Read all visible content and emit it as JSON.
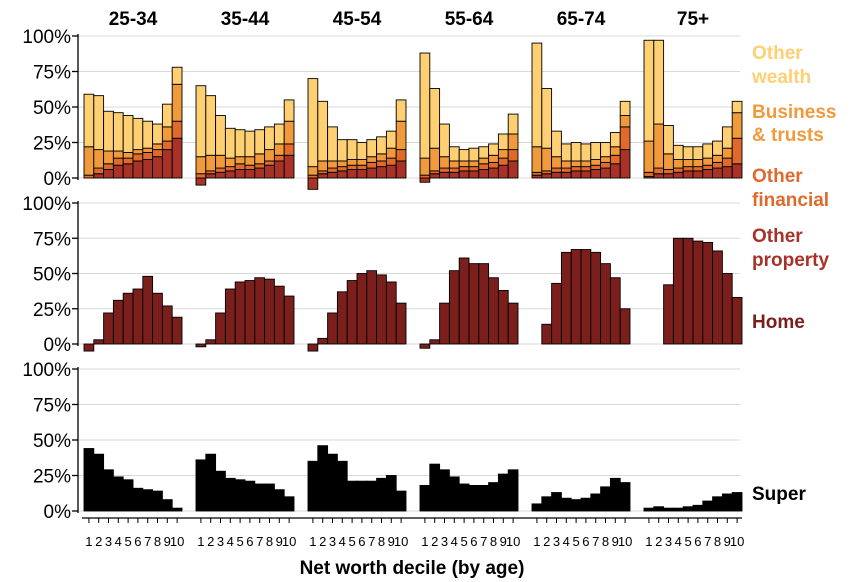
{
  "chart_data": {
    "type": "bar",
    "stacked": true,
    "x_axis_label": "Net worth decile (by age)",
    "y_ticks": [
      "100%",
      "75%",
      "50%",
      "25%",
      "0%"
    ],
    "y_range": [
      0,
      100
    ],
    "deciles": [
      "1",
      "2",
      "3",
      "4",
      "5",
      "6",
      "7",
      "8",
      "9",
      "10"
    ],
    "age_groups": [
      "25-34",
      "35-44",
      "45-54",
      "55-64",
      "65-74",
      "75+"
    ],
    "colors": {
      "Home": "#7b1f1c",
      "Other property": "#a83228",
      "Other financial": "#e06a2b",
      "Business & trusts": "#f09a3c",
      "Other wealth": "#fecf73",
      "Super": "#000000"
    },
    "rows": [
      {
        "row": "top",
        "legend": [
          {
            "lines": [
              "Other",
              "wealth"
            ],
            "color": "#fecf73"
          },
          {
            "lines": [
              "Business",
              "& trusts"
            ],
            "color": "#f09a3c"
          },
          {
            "lines": [
              "Other",
              "financial"
            ],
            "color": "#e06a2b"
          },
          {
            "lines": [
              "Other",
              "property"
            ],
            "color": "#a83228"
          }
        ],
        "series_order": [
          "Other property",
          "Other financial",
          "Business & trusts",
          "Other wealth"
        ],
        "panels": [
          {
            "age": "25-34",
            "segments": {
              "Other property": [
                0,
                3,
                6,
                9,
                10,
                12,
                13,
                15,
                20,
                28
              ],
              "Other financial": [
                2,
                4,
                4,
                5,
                4,
                5,
                5,
                5,
                6,
                12
              ],
              "Business & trusts": [
                20,
                13,
                9,
                5,
                4,
                3,
                3,
                4,
                10,
                26
              ],
              "Other wealth": [
                37,
                38,
                28,
                27,
                26,
                22,
                19,
                14,
                16,
                12
              ]
            }
          },
          {
            "age": "35-44",
            "segments": {
              "Other property": [
                -5,
                3,
                4,
                5,
                6,
                6,
                7,
                9,
                12,
                16
              ],
              "Other financial": [
                3,
                2,
                3,
                3,
                4,
                3,
                3,
                3,
                4,
                8
              ],
              "Business & trusts": [
                12,
                11,
                9,
                6,
                5,
                6,
                7,
                8,
                8,
                16
              ],
              "Other wealth": [
                50,
                42,
                28,
                21,
                19,
                18,
                17,
                16,
                14,
                15
              ]
            }
          },
          {
            "age": "45-54",
            "segments": {
              "Other property": [
                -8,
                3,
                4,
                5,
                6,
                6,
                7,
                8,
                9,
                12
              ],
              "Other financial": [
                2,
                2,
                3,
                3,
                3,
                3,
                4,
                4,
                5,
                8
              ],
              "Business & trusts": [
                6,
                7,
                5,
                4,
                4,
                4,
                4,
                5,
                7,
                20
              ],
              "Other wealth": [
                62,
                42,
                24,
                15,
                14,
                12,
                12,
                12,
                12,
                15
              ]
            }
          },
          {
            "age": "55-64",
            "segments": {
              "Other property": [
                -3,
                3,
                4,
                4,
                5,
                5,
                6,
                7,
                9,
                12
              ],
              "Other financial": [
                2,
                2,
                3,
                3,
                3,
                3,
                4,
                4,
                5,
                8
              ],
              "Business & trusts": [
                12,
                16,
                8,
                5,
                4,
                4,
                4,
                5,
                6,
                11
              ],
              "Other wealth": [
                74,
                42,
                23,
                10,
                8,
                9,
                8,
                8,
                11,
                14
              ]
            }
          },
          {
            "age": "65-74",
            "segments": {
              "Other property": [
                2,
                3,
                4,
                4,
                5,
                5,
                6,
                7,
                10,
                20
              ],
              "Other financial": [
                2,
                2,
                3,
                3,
                3,
                3,
                3,
                4,
                6,
                16
              ],
              "Business & trusts": [
                18,
                16,
                8,
                5,
                4,
                4,
                4,
                4,
                6,
                8
              ],
              "Other wealth": [
                73,
                42,
                18,
                12,
                13,
                12,
                12,
                10,
                10,
                10
              ]
            }
          },
          {
            "age": "75+",
            "segments": {
              "Other property": [
                1,
                3,
                3,
                4,
                5,
                5,
                6,
                7,
                8,
                10
              ],
              "Other financial": [
                3,
                4,
                3,
                3,
                3,
                3,
                3,
                4,
                6,
                18
              ],
              "Business & trusts": [
                22,
                31,
                11,
                6,
                5,
                5,
                5,
                5,
                7,
                18
              ],
              "Other wealth": [
                71,
                59,
                20,
                10,
                9,
                9,
                10,
                10,
                15,
                8
              ]
            }
          }
        ]
      },
      {
        "row": "middle",
        "legend": [
          {
            "lines": [
              "Home"
            ],
            "color": "#7b1f1c"
          }
        ],
        "series_order": [
          "Home"
        ],
        "panels": [
          {
            "age": "25-34",
            "segments": {
              "Home": [
                -5,
                3,
                22,
                31,
                36,
                39,
                48,
                36,
                27,
                19
              ]
            }
          },
          {
            "age": "35-44",
            "segments": {
              "Home": [
                -2,
                3,
                22,
                39,
                44,
                45,
                47,
                46,
                41,
                34
              ]
            }
          },
          {
            "age": "45-54",
            "segments": {
              "Home": [
                -5,
                4,
                22,
                37,
                45,
                50,
                52,
                49,
                44,
                29
              ]
            }
          },
          {
            "age": "55-64",
            "segments": {
              "Home": [
                -3,
                3,
                29,
                52,
                61,
                57,
                57,
                47,
                38,
                29
              ]
            }
          },
          {
            "age": "65-74",
            "segments": {
              "Home": [
                0,
                14,
                43,
                65,
                67,
                67,
                65,
                57,
                47,
                25
              ]
            }
          },
          {
            "age": "75+",
            "segments": {
              "Home": [
                0,
                0,
                42,
                75,
                75,
                73,
                72,
                66,
                50,
                33
              ]
            }
          }
        ]
      },
      {
        "row": "bottom",
        "legend": [
          {
            "lines": [
              "Super"
            ],
            "color": "#000000"
          }
        ],
        "series_order": [
          "Super"
        ],
        "panels": [
          {
            "age": "25-34",
            "segments": {
              "Super": [
                44,
                40,
                29,
                24,
                22,
                16,
                15,
                14,
                8,
                2
              ]
            }
          },
          {
            "age": "35-44",
            "segments": {
              "Super": [
                36,
                40,
                28,
                23,
                22,
                21,
                19,
                19,
                15,
                10
              ]
            }
          },
          {
            "age": "45-54",
            "segments": {
              "Super": [
                35,
                46,
                40,
                35,
                21,
                21,
                21,
                23,
                25,
                14
              ]
            }
          },
          {
            "age": "55-64",
            "segments": {
              "Super": [
                18,
                33,
                29,
                24,
                19,
                18,
                18,
                20,
                26,
                29
              ]
            }
          },
          {
            "age": "65-74",
            "segments": {
              "Super": [
                5,
                10,
                13,
                9,
                8,
                9,
                12,
                17,
                23,
                20
              ]
            }
          },
          {
            "age": "75+",
            "segments": {
              "Super": [
                2,
                3,
                2,
                2,
                3,
                4,
                7,
                10,
                12,
                13
              ]
            }
          }
        ]
      }
    ]
  }
}
